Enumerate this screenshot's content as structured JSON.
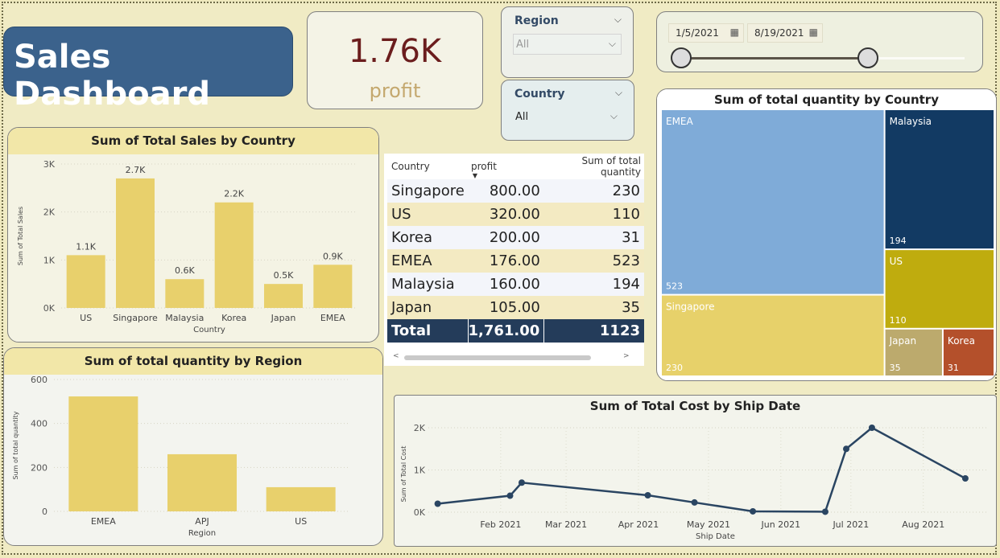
{
  "title": "Sales Dashboard",
  "kpi": {
    "value": "1.76K",
    "label": "profit"
  },
  "region_slicer": {
    "label": "Region",
    "value": "All"
  },
  "country_slicer": {
    "label": "Country",
    "value": "All"
  },
  "date_range": {
    "start": "1/5/2021",
    "end": "8/19/2021",
    "slider_start": 0.0,
    "slider_end": 0.65
  },
  "colors": {
    "bar": "#e8d06c",
    "line": "#2a4562",
    "title_bg": "#3b628c",
    "kpi_value": "#6b1d1d",
    "total_row": "#243c5a"
  },
  "table": {
    "headers": [
      "Country",
      "profit",
      "Sum of total quantity"
    ],
    "rows": [
      [
        "Singapore",
        "800.00",
        "230"
      ],
      [
        "US",
        "320.00",
        "110"
      ],
      [
        "Korea",
        "200.00",
        "31"
      ],
      [
        "EMEA",
        "176.00",
        "523"
      ],
      [
        "Malaysia",
        "160.00",
        "194"
      ],
      [
        "Japan",
        "105.00",
        "35"
      ]
    ],
    "total": [
      "Total",
      "1,761.00",
      "1123"
    ],
    "scroll_left": "<",
    "scroll_right": ">"
  },
  "chart_data": [
    {
      "type": "bar",
      "title": "Sum of Total Sales by Country",
      "xlabel": "Country",
      "ylabel": "Sum of Total Sales",
      "categories": [
        "US",
        "Singapore",
        "Malaysia",
        "Korea",
        "Japan",
        "EMEA"
      ],
      "values": [
        1100,
        2700,
        600,
        2200,
        500,
        900
      ],
      "data_labels": [
        "1.1K",
        "2.7K",
        "0.6K",
        "2.2K",
        "0.5K",
        "0.9K"
      ],
      "yticks": [
        "0K",
        "1K",
        "2K",
        "3K"
      ],
      "ylim": [
        0,
        3000
      ]
    },
    {
      "type": "bar",
      "title": "Sum of total quantity by Region",
      "xlabel": "Region",
      "ylabel": "Sum of total quantity",
      "categories": [
        "EMEA",
        "APJ",
        "US"
      ],
      "values": [
        523,
        260,
        110
      ],
      "yticks": [
        "0",
        "200",
        "400",
        "600"
      ],
      "ylim": [
        0,
        600
      ]
    },
    {
      "type": "treemap",
      "title": "Sum of total quantity by Country",
      "items": [
        {
          "name": "EMEA",
          "value": 523,
          "label": "523",
          "color": "#7fabd8"
        },
        {
          "name": "Singapore",
          "value": 230,
          "label": "230",
          "color": "#e7d16a"
        },
        {
          "name": "Malaysia",
          "value": 194,
          "label": "194",
          "color": "#123a63"
        },
        {
          "name": "US",
          "value": 110,
          "label": "110",
          "color": "#bfac0e"
        },
        {
          "name": "Japan",
          "value": 35,
          "label": "35",
          "color": "#bcaa6d"
        },
        {
          "name": "Korea",
          "value": 31,
          "label": "31",
          "color": "#b4502b"
        }
      ]
    },
    {
      "type": "line",
      "title": "Sum of Total Cost by Ship Date",
      "xlabel": "Ship Date",
      "ylabel": "Sum of Total Cost",
      "xticks": [
        "Feb 2021",
        "Mar 2021",
        "Apr 2021",
        "May 2021",
        "Jun 2021",
        "Jul 2021",
        "Aug 2021"
      ],
      "yticks": [
        "0K",
        "1K",
        "2K"
      ],
      "ylim": [
        0,
        2000
      ],
      "points": [
        {
          "x": "2021-01-05",
          "y": 200
        },
        {
          "x": "2021-02-05",
          "y": 390
        },
        {
          "x": "2021-02-10",
          "y": 700
        },
        {
          "x": "2021-04-05",
          "y": 400
        },
        {
          "x": "2021-04-25",
          "y": 230
        },
        {
          "x": "2021-05-20",
          "y": 20
        },
        {
          "x": "2021-06-20",
          "y": 10
        },
        {
          "x": "2021-06-29",
          "y": 1500
        },
        {
          "x": "2021-07-10",
          "y": 2000
        },
        {
          "x": "2021-08-19",
          "y": 800
        }
      ]
    }
  ]
}
